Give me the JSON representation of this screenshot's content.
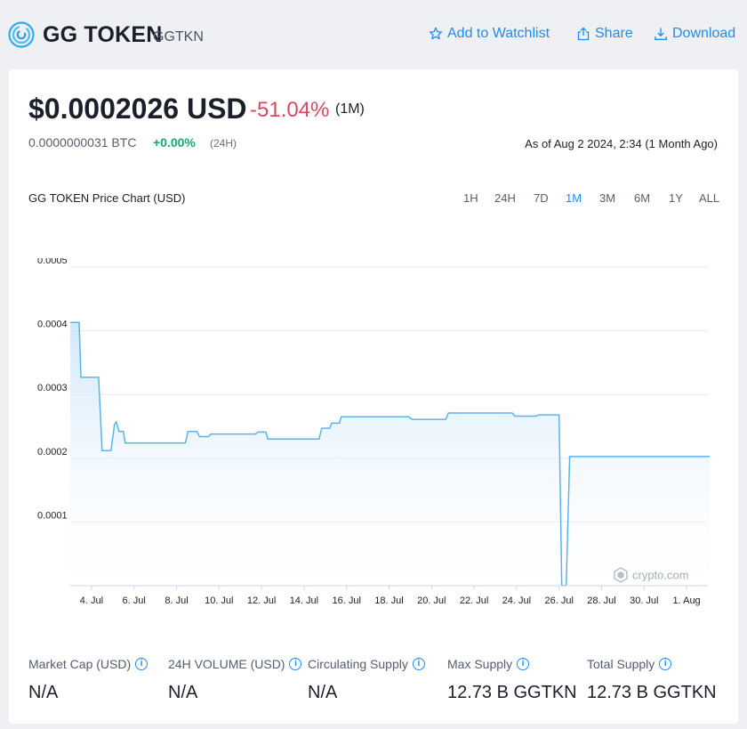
{
  "header": {
    "token_name": "GG TOKEN",
    "token_symbol": "GGTKN",
    "actions": {
      "watchlist": "Add to Watchlist",
      "share": "Share",
      "download": "Download"
    }
  },
  "price": {
    "usd": "$0.0002026 USD",
    "change": "-51.04%",
    "period": "(1M)",
    "btc": "0.0000000031 BTC",
    "btc_change": "+0.00%",
    "btc_period": "(24H)",
    "as_of": "As of Aug 2 2024, 2:34 (1 Month Ago)"
  },
  "chart": {
    "title": "GG TOKEN Price Chart (USD)",
    "ranges": [
      "1H",
      "24H",
      "7D",
      "1M",
      "3M",
      "6M",
      "1Y",
      "ALL"
    ],
    "active_range": "1M",
    "watermark": "crypto.com"
  },
  "chart_data": {
    "type": "area",
    "title": "GG TOKEN Price Chart (USD)",
    "xlabel": "",
    "ylabel": "",
    "ylim": [
      0,
      0.0005
    ],
    "xlim": [
      "2024-07-03",
      "2024-08-02"
    ],
    "y_ticks": [
      "0.0001",
      "0.0002",
      "0.0003",
      "0.0004",
      "0.0005"
    ],
    "x_ticks": [
      {
        "date": "2024-07-04",
        "label": "4. Jul"
      },
      {
        "date": "2024-07-06",
        "label": "6. Jul"
      },
      {
        "date": "2024-07-08",
        "label": "8. Jul"
      },
      {
        "date": "2024-07-10",
        "label": "10. Jul"
      },
      {
        "date": "2024-07-12",
        "label": "12. Jul"
      },
      {
        "date": "2024-07-14",
        "label": "14. Jul"
      },
      {
        "date": "2024-07-16",
        "label": "16. Jul"
      },
      {
        "date": "2024-07-18",
        "label": "18. Jul"
      },
      {
        "date": "2024-07-20",
        "label": "20. Jul"
      },
      {
        "date": "2024-07-22",
        "label": "22. Jul"
      },
      {
        "date": "2024-07-24",
        "label": "24. Jul"
      },
      {
        "date": "2024-07-26",
        "label": "26. Jul"
      },
      {
        "date": "2024-07-28",
        "label": "28. Jul"
      },
      {
        "date": "2024-07-30",
        "label": "30. Jul"
      },
      {
        "date": "2024-08-01",
        "label": "1. Aug"
      }
    ],
    "grid": true,
    "line_color": "#5cb3ec",
    "fill_color": "#d6ecfb",
    "points": [
      [
        "2024-07-03 00:00",
        0.000413
      ],
      [
        "2024-07-03 10:00",
        0.000413
      ],
      [
        "2024-07-03 12:00",
        0.000327
      ],
      [
        "2024-07-04 08:00",
        0.000327
      ],
      [
        "2024-07-04 12:00",
        0.000212
      ],
      [
        "2024-07-04 22:00",
        0.000212
      ],
      [
        "2024-07-05 02:00",
        0.000253
      ],
      [
        "2024-07-05 04:00",
        0.000257
      ],
      [
        "2024-07-05 07:00",
        0.000242
      ],
      [
        "2024-07-05 12:00",
        0.000242
      ],
      [
        "2024-07-05 14:00",
        0.000224
      ],
      [
        "2024-07-08 10:00",
        0.000224
      ],
      [
        "2024-07-08 13:00",
        0.000242
      ],
      [
        "2024-07-08 23:00",
        0.000242
      ],
      [
        "2024-07-09 02:00",
        0.000234
      ],
      [
        "2024-07-09 12:00",
        0.000234
      ],
      [
        "2024-07-09 15:00",
        0.000238
      ],
      [
        "2024-07-11 17:00",
        0.000238
      ],
      [
        "2024-07-11 20:00",
        0.000241
      ],
      [
        "2024-07-12 05:00",
        0.000241
      ],
      [
        "2024-07-12 07:00",
        0.00023
      ],
      [
        "2024-07-14 17:00",
        0.00023
      ],
      [
        "2024-07-14 20:00",
        0.000247
      ],
      [
        "2024-07-15 05:00",
        0.000247
      ],
      [
        "2024-07-15 07:00",
        0.000255
      ],
      [
        "2024-07-15 16:00",
        0.000255
      ],
      [
        "2024-07-15 18:00",
        0.000265
      ],
      [
        "2024-07-18 22:00",
        0.000265
      ],
      [
        "2024-07-19 02:00",
        0.000261
      ],
      [
        "2024-07-20 16:00",
        0.000261
      ],
      [
        "2024-07-20 19:00",
        0.000271
      ],
      [
        "2024-07-23 19:00",
        0.000271
      ],
      [
        "2024-07-23 22:00",
        0.000266
      ],
      [
        "2024-07-24 22:00",
        0.000266
      ],
      [
        "2024-07-25 01:00",
        0.000268
      ],
      [
        "2024-07-26 00:00",
        0.000268
      ],
      [
        "2024-07-26 03:00",
        3e-07
      ],
      [
        "2024-07-26 08:00",
        3e-07
      ],
      [
        "2024-07-26 12:00",
        0.0002026
      ],
      [
        "2024-08-02 02:00",
        0.0002026
      ]
    ]
  },
  "stats": [
    {
      "label": "Market Cap (USD)",
      "value": "N/A"
    },
    {
      "label": "24H VOLUME (USD)",
      "value": "N/A"
    },
    {
      "label": "Circulating Supply",
      "value": "N/A"
    },
    {
      "label": "Max Supply",
      "value": "12.73 B GGTKN"
    },
    {
      "label": "Total Supply",
      "value": "12.73 B GGTKN"
    }
  ]
}
